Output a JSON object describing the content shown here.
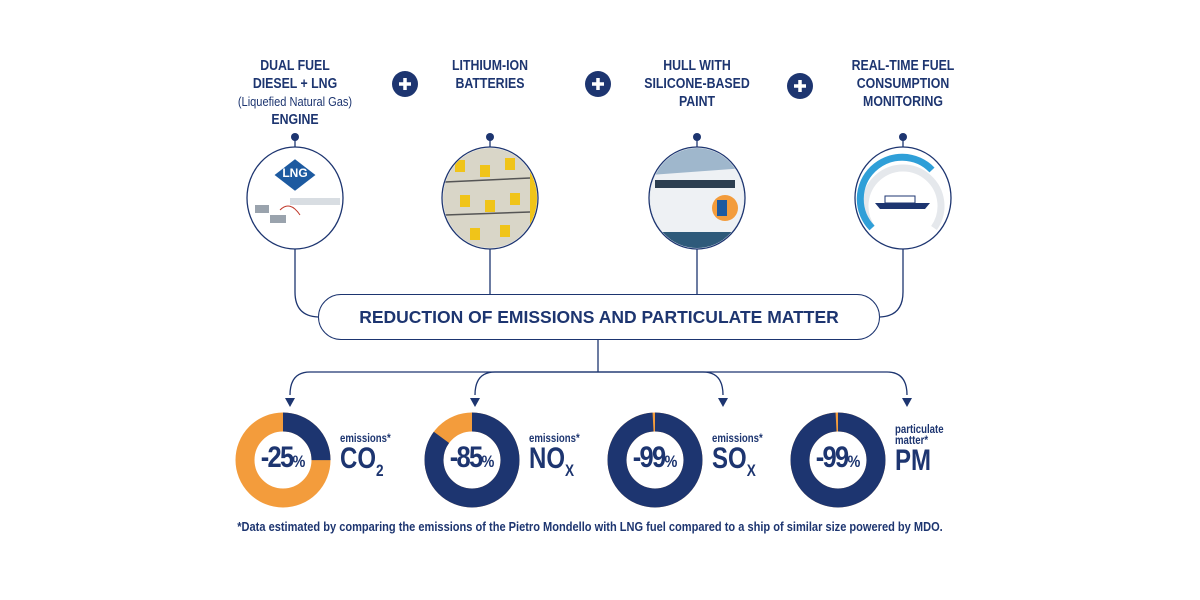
{
  "colors": {
    "navy": "#1d3570",
    "orange": "#f39c3c"
  },
  "features": [
    {
      "lines": [
        "DUAL FUEL",
        "DIESEL + LNG"
      ],
      "sub": "(Liquefied Natural Gas)",
      "last": "ENGINE",
      "image": "lng-engine-image",
      "badge": "LNG"
    },
    {
      "lines": [
        "LITHIUM-ION",
        "BATTERIES"
      ],
      "image": "battery-racks-image"
    },
    {
      "lines": [
        "HULL WITH",
        "SILICONE-BASED",
        "PAINT"
      ],
      "image": "ferry-hull-image"
    },
    {
      "lines": [
        "REAL-TIME FUEL",
        "CONSUMPTION",
        "MONITORING"
      ],
      "image": "fuel-gauge-image"
    }
  ],
  "connector_icon": "plus-circle-icon",
  "center_label": "REDUCTION OF EMISSIONS AND PARTICULATE MATTER",
  "reductions": [
    {
      "value": "-25",
      "unit": "%",
      "top": "emissions*",
      "main": "CO",
      "subscript": "2",
      "reduction_percent": 25
    },
    {
      "value": "-85",
      "unit": "%",
      "top": "emissions*",
      "main": "NO",
      "subscript": "X",
      "reduction_percent": 85
    },
    {
      "value": "-99",
      "unit": "%",
      "top": "emissions*",
      "main": "SO",
      "subscript": "X",
      "reduction_percent": 99
    },
    {
      "value": "-99",
      "unit": "%",
      "top": "particulate matter*",
      "main": "PM",
      "subscript": "",
      "reduction_percent": 99
    }
  ],
  "footnote": "*Data estimated by comparing the emissions of the Pietro Mondello with LNG fuel compared to a ship of similar size powered by MDO."
}
